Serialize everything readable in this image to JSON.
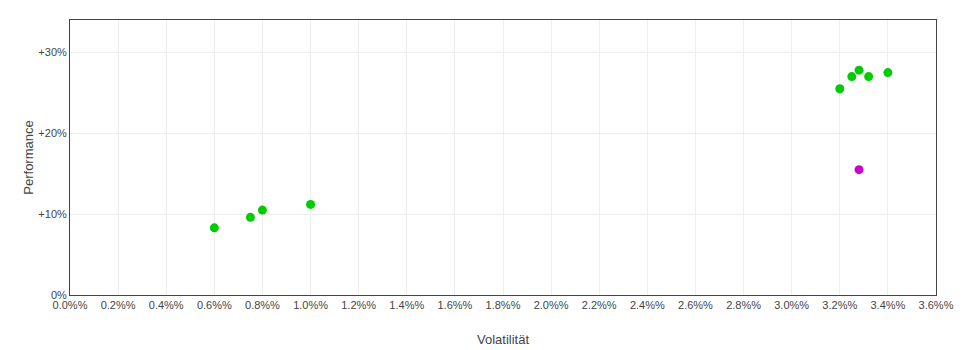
{
  "chart_data": {
    "type": "scatter",
    "xlabel": "Volatilität",
    "ylabel": "Performance",
    "xlim": [
      0.0,
      0.036
    ],
    "ylim": [
      0.0,
      0.34
    ],
    "xticks": [
      {
        "value": 0.0,
        "label": "0.0%%"
      },
      {
        "value": 0.002,
        "label": "0.2%%"
      },
      {
        "value": 0.004,
        "label": "0.4%%"
      },
      {
        "value": 0.006,
        "label": "0.6%%"
      },
      {
        "value": 0.008,
        "label": "0.8%%"
      },
      {
        "value": 0.01,
        "label": "1.0%%"
      },
      {
        "value": 0.012,
        "label": "1.2%%"
      },
      {
        "value": 0.014,
        "label": "1.4%%"
      },
      {
        "value": 0.016,
        "label": "1.6%%"
      },
      {
        "value": 0.018,
        "label": "1.8%%"
      },
      {
        "value": 0.02,
        "label": "2.0%%"
      },
      {
        "value": 0.022,
        "label": "2.2%%"
      },
      {
        "value": 0.024,
        "label": "2.4%%"
      },
      {
        "value": 0.026,
        "label": "2.6%%"
      },
      {
        "value": 0.028,
        "label": "2.8%%"
      },
      {
        "value": 0.03,
        "label": "3.0%%"
      },
      {
        "value": 0.032,
        "label": "3.2%%"
      },
      {
        "value": 0.034,
        "label": "3.4%%"
      },
      {
        "value": 0.036,
        "label": "3.6%%"
      }
    ],
    "yticks": [
      {
        "value": 0.0,
        "label": "0%"
      },
      {
        "value": 0.1,
        "label": "+10%"
      },
      {
        "value": 0.2,
        "label": "+20%"
      },
      {
        "value": 0.3,
        "label": "+30%"
      }
    ],
    "grid": true,
    "series": [
      {
        "color": "#00cc00",
        "x": [
          0.006,
          0.0075,
          0.008,
          0.01,
          0.032,
          0.0325,
          0.0328,
          0.0332,
          0.034
        ],
        "values": [
          0.083,
          0.096,
          0.105,
          0.112,
          0.255,
          0.27,
          0.278,
          0.27,
          0.275
        ]
      },
      {
        "color": "#cc00cc",
        "x": [
          0.0328
        ],
        "values": [
          0.155
        ]
      }
    ]
  }
}
